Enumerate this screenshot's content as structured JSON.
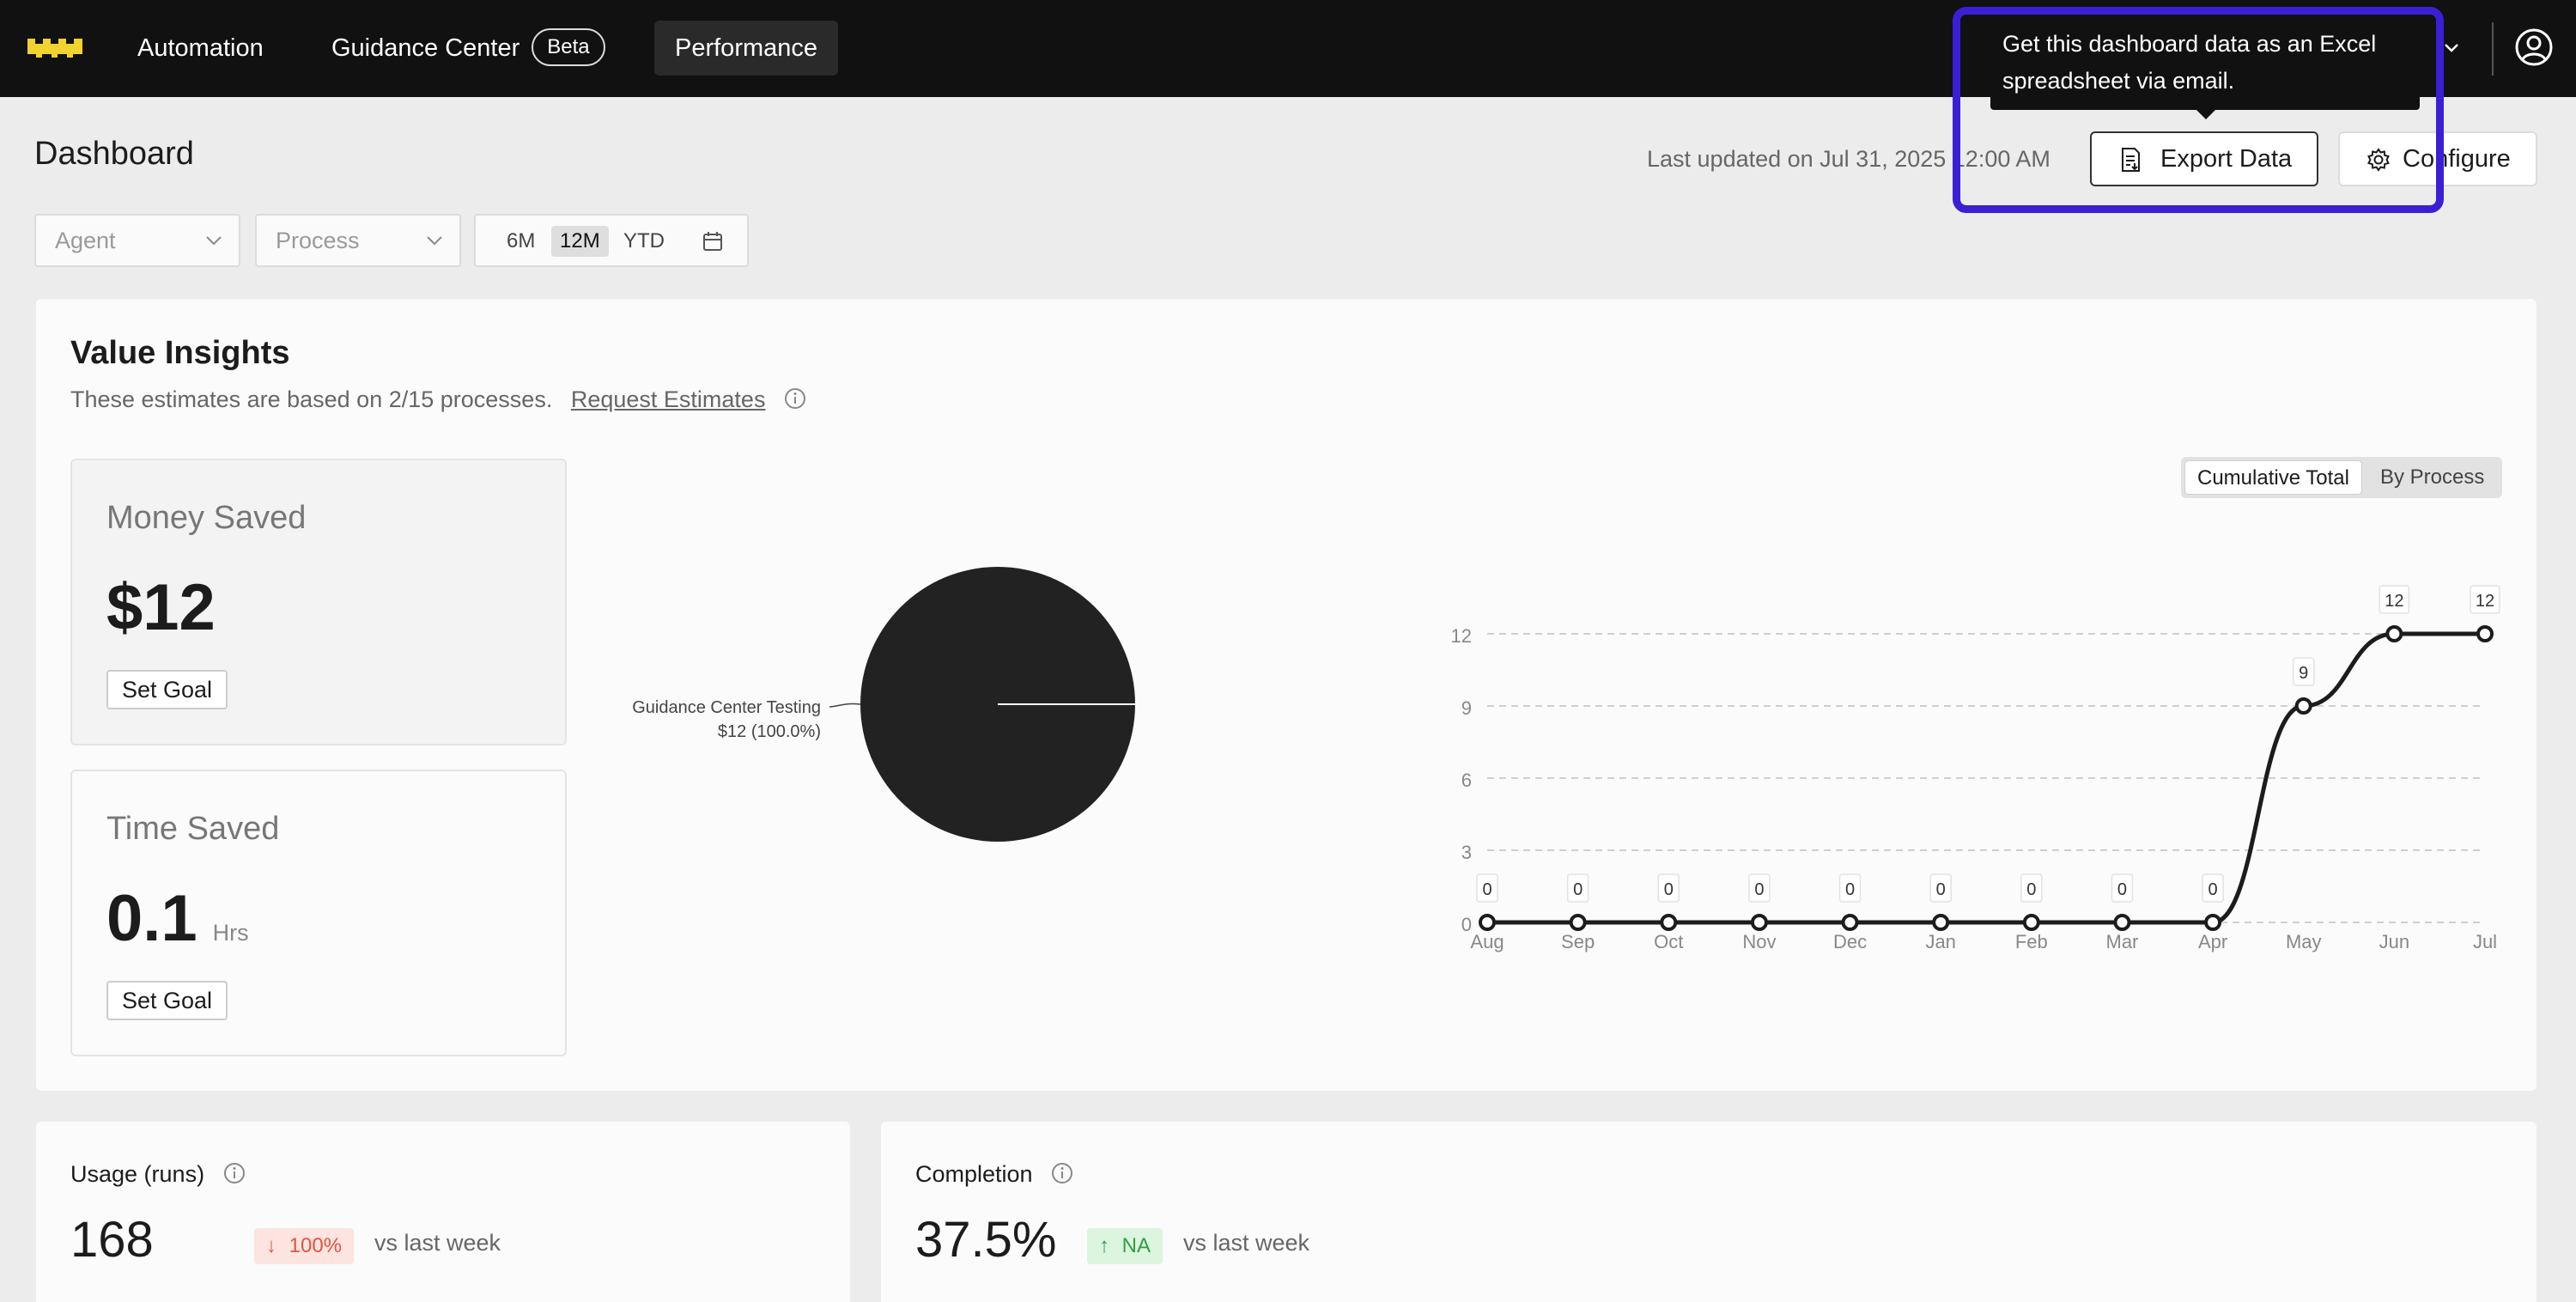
{
  "nav": {
    "items": [
      {
        "label": "Automation"
      },
      {
        "label": "Guidance Center",
        "badge": "Beta"
      },
      {
        "label": "Performance",
        "active": true
      }
    ]
  },
  "tooltip": {
    "line1": "Get this dashboard data as an Excel",
    "line2": "spreadsheet via email."
  },
  "header": {
    "title": "Dashboard",
    "last_updated": "Last updated on Jul 31, 2025 12:00 AM",
    "export_label": "Export Data",
    "configure_label": "Configure"
  },
  "filters": {
    "agent_placeholder": "Agent",
    "process_placeholder": "Process",
    "ranges": [
      "6M",
      "12M",
      "YTD"
    ],
    "active_range": "12M"
  },
  "value_insights": {
    "title": "Value Insights",
    "subtitle": "These estimates are based on 2/15 processes.",
    "link": "Request Estimates",
    "money": {
      "label": "Money Saved",
      "value": "$12",
      "goal_label": "Set Goal"
    },
    "time": {
      "label": "Time Saved",
      "value": "0.1",
      "unit": "Hrs",
      "goal_label": "Set Goal"
    },
    "toggle": {
      "left": "Cumulative Total",
      "right": "By Process"
    }
  },
  "chart_data": [
    {
      "type": "pie",
      "slices": [
        {
          "label": "Guidance Center Testing",
          "value": 12,
          "value_label": "$12 (100.0%)"
        }
      ]
    },
    {
      "type": "line",
      "x": [
        "Aug",
        "Sep",
        "Oct",
        "Nov",
        "Dec",
        "Jan",
        "Feb",
        "Mar",
        "Apr",
        "May",
        "Jun",
        "Jul"
      ],
      "series": [
        {
          "values": [
            0,
            0,
            0,
            0,
            0,
            0,
            0,
            0,
            0,
            9,
            12,
            12
          ]
        }
      ],
      "yticks": [
        0,
        3,
        6,
        9,
        12
      ],
      "ylim": [
        0,
        12
      ],
      "grid": true
    }
  ],
  "usage": {
    "label": "Usage (runs)",
    "value": "168",
    "delta": "100%",
    "delta_note": "vs last week"
  },
  "completion": {
    "label": "Completion",
    "value": "37.5%",
    "delta": "NA",
    "delta_note": "vs last week"
  }
}
